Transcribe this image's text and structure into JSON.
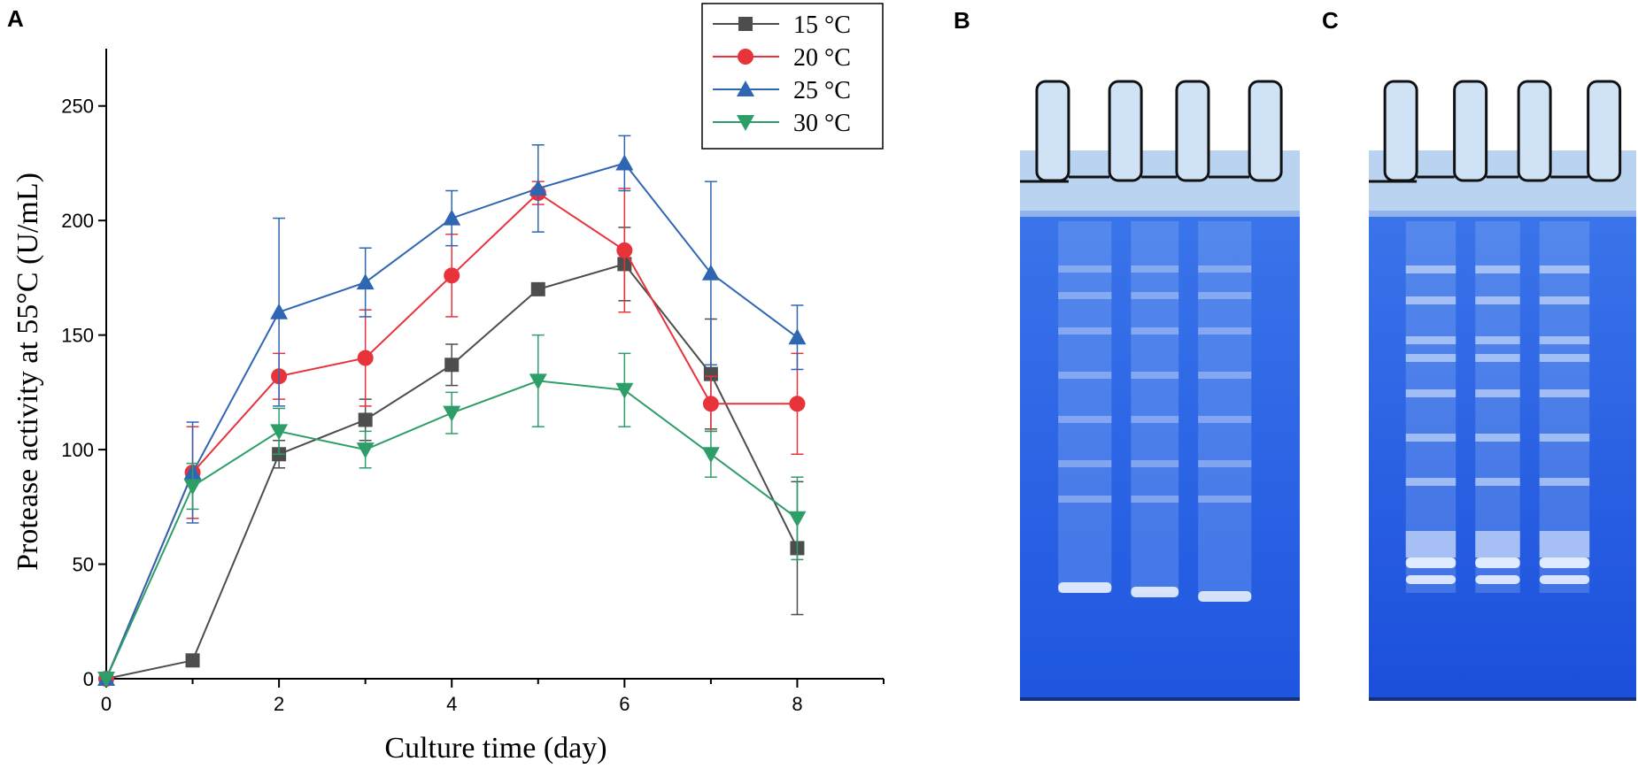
{
  "panels": {
    "a": "A",
    "b": "B",
    "c": "C"
  },
  "chart_data": {
    "type": "line",
    "xlabel": "Culture time (day)",
    "ylabel": "Protease activity at 55°C  (U/mL)",
    "xlim": [
      0,
      9
    ],
    "ylim": [
      0,
      275
    ],
    "xticks": [
      0,
      2,
      4,
      6,
      8
    ],
    "yticks": [
      0,
      50,
      100,
      150,
      200,
      250
    ],
    "legend_position": "top-right",
    "x": [
      0,
      1,
      2,
      3,
      4,
      5,
      6,
      7,
      8
    ],
    "series": [
      {
        "name": "15 °C",
        "color": "#4d4d4d",
        "marker": "square",
        "values": [
          0,
          8,
          98,
          113,
          137,
          170,
          181,
          133,
          57
        ],
        "errors": [
          0,
          0,
          6,
          9,
          9,
          0,
          16,
          24,
          29
        ]
      },
      {
        "name": "20 °C",
        "color": "#e8333b",
        "marker": "circle",
        "values": [
          0,
          90,
          132,
          140,
          176,
          212,
          187,
          120,
          120
        ],
        "errors": [
          0,
          20,
          10,
          21,
          18,
          5,
          27,
          12,
          22
        ]
      },
      {
        "name": "25 °C",
        "color": "#2f66b3",
        "marker": "triangle-up",
        "values": [
          0,
          90,
          160,
          173,
          201,
          214,
          225,
          177,
          149
        ],
        "errors": [
          0,
          22,
          41,
          15,
          12,
          19,
          12,
          40,
          14
        ]
      },
      {
        "name": "30 °C",
        "color": "#2e9e68",
        "marker": "triangle-down",
        "values": [
          0,
          84,
          108,
          100,
          116,
          130,
          126,
          98,
          70
        ],
        "errors": [
          0,
          10,
          10,
          8,
          9,
          20,
          16,
          10,
          18
        ]
      }
    ]
  },
  "gels": {
    "lane_count": 3,
    "b_background": "#1e56e0",
    "c_background": "#1b4fdc",
    "well_color": "#cfe2f6",
    "band_color": "#e8f1ff"
  }
}
